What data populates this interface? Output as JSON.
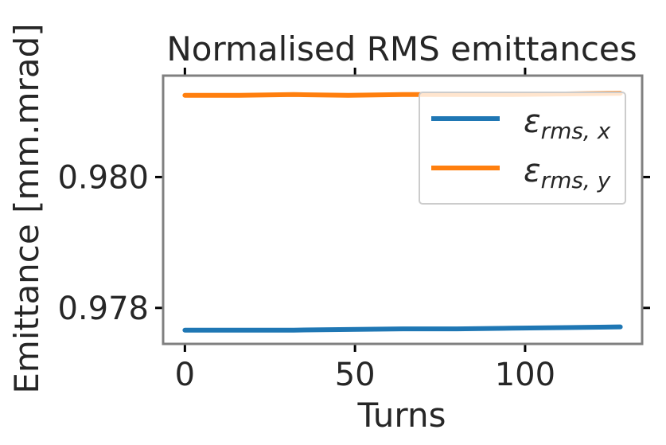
{
  "chart_data": {
    "type": "line",
    "title": "Normalised RMS emittances",
    "xlabel": "Turns",
    "ylabel": "Emittance [mm.mrad]",
    "xlim": [
      -6.4,
      134.4
    ],
    "ylim": [
      0.97745,
      0.98155
    ],
    "xticks": [
      0,
      50,
      100
    ],
    "xtick_labels": [
      "0",
      "50",
      "100"
    ],
    "yticks": [
      0.978,
      0.98
    ],
    "ytick_labels": [
      "0.978",
      "0.980"
    ],
    "grid": false,
    "legend_position": "top-right",
    "series": [
      {
        "name": "ε_{rms, x}",
        "legend_main": "ε",
        "legend_sub": "rms, x",
        "color": "#1f77b4",
        "x": [
          0,
          16,
          32,
          48,
          64,
          80,
          96,
          112,
          128
        ],
        "y": [
          0.97766,
          0.97766,
          0.97766,
          0.97767,
          0.97768,
          0.97768,
          0.97769,
          0.9777,
          0.97771
        ]
      },
      {
        "name": "ε_{rms, y}",
        "legend_main": "ε",
        "legend_sub": "rms, y",
        "color": "#ff7f0e",
        "x": [
          0,
          16,
          32,
          48,
          64,
          80,
          96,
          112,
          128
        ],
        "y": [
          0.98125,
          0.98125,
          0.98126,
          0.98125,
          0.98126,
          0.98126,
          0.98126,
          0.98127,
          0.98128
        ]
      }
    ]
  }
}
